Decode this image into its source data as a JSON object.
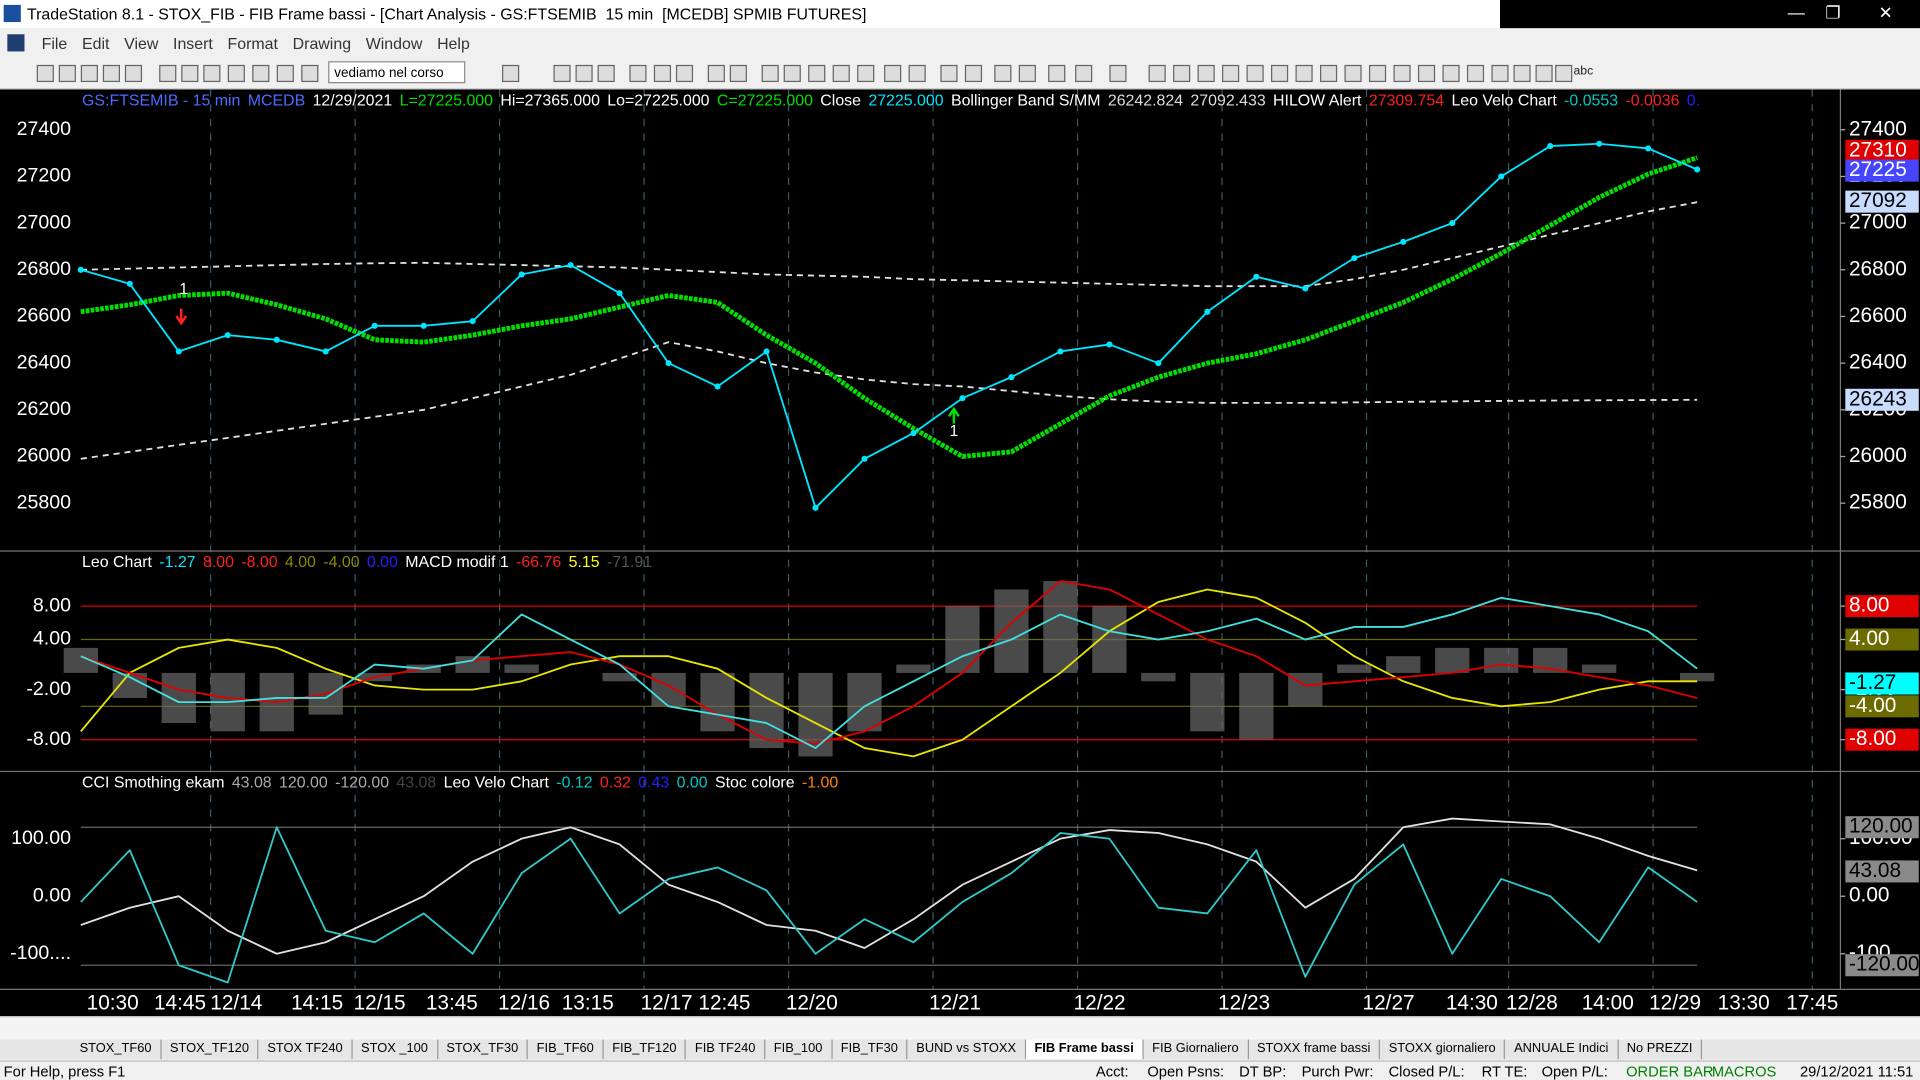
{
  "window": {
    "title": "TradeStation 8.1 - STOX_FIB - FIB Frame bassi - [Chart Analysis - GS:FTSEMIB  15 min  [MCEDB] SPMIB FUTURES]"
  },
  "menu": [
    "File",
    "Edit",
    "View",
    "Insert",
    "Format",
    "Drawing",
    "Window",
    "Help"
  ],
  "toolbar": {
    "workspace_select": "vediamo nel corso",
    "text_tool": "abc"
  },
  "chart": {
    "price_panel": {
      "header": [
        {
          "text": "GS:FTSEMIB - 15 min",
          "color": "#4a6cff"
        },
        {
          "text": "MCEDB",
          "color": "#4a6cff"
        },
        {
          "text": "12/29/2021",
          "color": "#ffffff"
        },
        {
          "text": "L=27225.000",
          "color": "#00e000"
        },
        {
          "text": "Hi=27365.000",
          "color": "#ffffff"
        },
        {
          "text": "Lo=27225.000",
          "color": "#ffffff"
        },
        {
          "text": "C=27225.000",
          "color": "#00e000"
        },
        {
          "text": "Close",
          "color": "#ffffff"
        },
        {
          "text": "27225.000",
          "color": "#00e5ff"
        },
        {
          "text": "Bollinger Band S/MM",
          "color": "#ffffff"
        },
        {
          "text": "26242.824",
          "color": "#dddddd"
        },
        {
          "text": "27092.433",
          "color": "#dddddd"
        },
        {
          "text": "HILOW Alert",
          "color": "#ffffff"
        },
        {
          "text": "27309.754",
          "color": "#ff2020"
        },
        {
          "text": "Leo Velo Chart",
          "color": "#ffffff"
        },
        {
          "text": "-0.0553",
          "color": "#00c8c8"
        },
        {
          "text": "-0.0036",
          "color": "#ff2020"
        },
        {
          "text": "0.",
          "color": "#2020ff"
        }
      ],
      "ylim": [
        25595,
        27573
      ],
      "yticks": [
        27400,
        27200,
        27000,
        26800,
        26600,
        26400,
        26200,
        26000,
        25800
      ],
      "badges": [
        {
          "value": 27310,
          "bg": "#e00000",
          "fg": "#ffffff"
        },
        {
          "value": 27225,
          "bg": "#4646ff",
          "fg": "#ffffff"
        },
        {
          "value": 27092,
          "bg": "#c8dcff",
          "fg": "#000000"
        },
        {
          "value": 26243,
          "bg": "#c8dcff",
          "fg": "#000000"
        }
      ],
      "series": [
        {
          "color": "#e0e0e0",
          "style": "dashed",
          "values": [
            26800,
            26805,
            26810,
            26815,
            26820,
            26825,
            26828,
            26830,
            26825,
            26820,
            26815,
            26810,
            26800,
            26790,
            26780,
            26775,
            26770,
            26760,
            26755,
            26750,
            26745,
            26740,
            26735,
            26730,
            26730,
            26730,
            26760,
            26800,
            26850,
            26900,
            26950,
            27000,
            27050,
            27090
          ]
        },
        {
          "color": "#e0e0e0",
          "style": "dashed",
          "values": [
            25990,
            26020,
            26050,
            26080,
            26110,
            26140,
            26170,
            26200,
            26250,
            26300,
            26350,
            26420,
            26490,
            26450,
            26400,
            26360,
            26330,
            26310,
            26300,
            26280,
            26260,
            26245,
            26235,
            26230,
            26230,
            26230,
            26232,
            26234,
            26236,
            26238,
            26240,
            26241,
            26242,
            26243
          ]
        },
        {
          "color": "#00e000",
          "style": "thick",
          "values": [
            26620,
            26650,
            26690,
            26700,
            26650,
            26590,
            26500,
            26490,
            26520,
            26560,
            26590,
            26640,
            26690,
            26660,
            26520,
            26400,
            26250,
            26120,
            26000,
            26020,
            26140,
            26260,
            26340,
            26400,
            26440,
            26500,
            26580,
            26660,
            26760,
            26870,
            26990,
            27110,
            27210,
            27280
          ]
        },
        {
          "color": "#00e5ff",
          "style": "dotted-line",
          "values": [
            26800,
            26740,
            26450,
            26520,
            26500,
            26450,
            26560,
            26560,
            26580,
            26780,
            26820,
            26700,
            26400,
            26300,
            26450,
            25780,
            25990,
            26100,
            26250,
            26340,
            26450,
            26480,
            26400,
            26620,
            26770,
            26720,
            26850,
            26920,
            27000,
            27200,
            27330,
            27340,
            27320,
            27230
          ]
        }
      ],
      "annotations": [
        "1",
        "1"
      ]
    },
    "macd_panel": {
      "header": [
        {
          "text": "Leo Chart",
          "color": "#ffffff"
        },
        {
          "text": "-1.27",
          "color": "#00e5ff"
        },
        {
          "text": "8.00",
          "color": "#ff2020"
        },
        {
          "text": "-8.00",
          "color": "#ff2020"
        },
        {
          "text": "4.00",
          "color": "#8a8a00"
        },
        {
          "text": "-4.00",
          "color": "#8a8a00"
        },
        {
          "text": "0.00",
          "color": "#2020ff"
        },
        {
          "text": "MACD modif 1",
          "color": "#ffffff"
        },
        {
          "text": "-66.76",
          "color": "#ff2020"
        },
        {
          "text": "5.15",
          "color": "#ffff00"
        },
        {
          "text": "-71.91",
          "color": "#555555"
        }
      ],
      "ylim": [
        -11.8,
        14.6
      ],
      "yticks": [
        {
          "value": 8,
          "label": "8.00"
        },
        {
          "value": 4,
          "label": "4.00"
        },
        {
          "value": -2,
          "label": "-2.00"
        },
        {
          "value": -8,
          "label": "-8.00"
        }
      ],
      "badges": [
        {
          "value": 8,
          "label": "8.00",
          "bg": "#e00000",
          "fg": "#ffffff",
          "line": true
        },
        {
          "value": 4,
          "label": "4.00",
          "bg": "#6b6b00",
          "fg": "#ffffff",
          "line": true
        },
        {
          "value": -1.27,
          "label": "-1.27",
          "bg": "#00ffff",
          "fg": "#000000",
          "line": false
        },
        {
          "value": -4,
          "label": "-4.00",
          "bg": "#6b6b00",
          "fg": "#ffffff",
          "line": true
        },
        {
          "value": -8,
          "label": "-8.00",
          "bg": "#e00000",
          "fg": "#ffffff",
          "line": true
        }
      ],
      "series": [
        {
          "color": "#6a6a6a",
          "style": "histogram",
          "values": [
            3,
            -3,
            -6,
            -7,
            -7,
            -5,
            -1,
            1,
            2,
            1,
            0,
            -1,
            -4,
            -7,
            -9,
            -10,
            -7,
            1,
            8,
            10,
            11,
            8,
            -1,
            -7,
            -8,
            -4,
            1,
            2,
            3,
            3,
            3,
            1,
            0,
            -1
          ]
        },
        {
          "color": "#e6e600",
          "style": "line",
          "values": [
            -7,
            0,
            3,
            4,
            3,
            0.5,
            -1.5,
            -2,
            -2,
            -1,
            1,
            2,
            2,
            0.5,
            -3,
            -6,
            -9,
            -10,
            -8,
            -4,
            0,
            5,
            8.5,
            10,
            9,
            6,
            2,
            -1,
            -3,
            -4,
            -3.5,
            -2,
            -1,
            -1
          ]
        },
        {
          "color": "#e00000",
          "style": "line",
          "values": [
            2,
            0,
            -2,
            -3,
            -3.5,
            -2.5,
            -0.5,
            0.5,
            1.5,
            2,
            2.5,
            1,
            -1.5,
            -5,
            -8,
            -8.5,
            -7,
            -4,
            0,
            6,
            11,
            10,
            7,
            4,
            2,
            -1.5,
            -1,
            -0.5,
            0,
            1,
            0.5,
            -0.5,
            -1.5,
            -3
          ]
        },
        {
          "color": "#40e0e0",
          "style": "line",
          "values": [
            2,
            -0.5,
            -3.5,
            -3.5,
            -3,
            -3,
            1,
            0.5,
            1.5,
            7,
            4,
            1,
            -4,
            -5,
            -6,
            -9,
            -4,
            -1,
            2,
            4,
            7,
            5,
            4,
            5,
            6.5,
            4,
            5.5,
            5.5,
            7,
            9,
            8,
            7,
            5,
            0.5
          ]
        }
      ]
    },
    "cci_panel": {
      "header": [
        {
          "text": "CCI Smothing ekam",
          "color": "#ffffff"
        },
        {
          "text": "43.08",
          "color": "#aaaaaa"
        },
        {
          "text": "120.00",
          "color": "#aaaaaa"
        },
        {
          "text": "-120.00",
          "color": "#aaaaaa"
        },
        {
          "text": "43.08",
          "color": "#444444"
        },
        {
          "text": "Leo Velo Chart",
          "color": "#ffffff"
        },
        {
          "text": "-0.12",
          "color": "#00c8c8"
        },
        {
          "text": "0.32",
          "color": "#ff2020"
        },
        {
          "text": "0.43",
          "color": "#2020ff"
        },
        {
          "text": "0.00",
          "color": "#00c8c8"
        },
        {
          "text": "Stoc colore",
          "color": "#ffffff"
        },
        {
          "text": "-1.00",
          "color": "#ff8000"
        }
      ],
      "ylim": [
        -162,
        217
      ],
      "yticks": [
        {
          "value": 100,
          "label": "100.00"
        },
        {
          "value": 0,
          "label": "0.00"
        },
        {
          "value": -100,
          "label": "-100...."
        }
      ],
      "badges": [
        {
          "value": 120,
          "label": "120.00",
          "bg": "#8a8a8a",
          "fg": "#000000",
          "line": true
        },
        {
          "value": 43.08,
          "label": "43.08",
          "bg": "#8a8a8a",
          "fg": "#000000",
          "line": false
        },
        {
          "value": -120,
          "label": "-120.00",
          "bg": "#8a8a8a",
          "fg": "#000000",
          "line": true
        }
      ],
      "series": [
        {
          "color": "#e0e0e0",
          "style": "line",
          "values": [
            -50,
            -20,
            0,
            -60,
            -100,
            -80,
            -40,
            0,
            60,
            100,
            120,
            90,
            20,
            -10,
            -50,
            -60,
            -90,
            -40,
            20,
            60,
            100,
            115,
            110,
            90,
            60,
            -20,
            30,
            120,
            135,
            130,
            125,
            100,
            70,
            45
          ]
        },
        {
          "color": "#30c8c8",
          "style": "line",
          "values": [
            -10,
            80,
            -120,
            -150,
            120,
            -60,
            -80,
            -30,
            -100,
            40,
            100,
            -30,
            30,
            50,
            10,
            -100,
            -40,
            -80,
            -10,
            40,
            110,
            100,
            -20,
            -30,
            80,
            -140,
            20,
            90,
            -100,
            30,
            0,
            -80,
            50,
            -10
          ]
        }
      ]
    },
    "x_labels": [
      "10:30",
      "14:45",
      "12/14",
      "14:15",
      "12/15",
      "13:45",
      "12/16",
      "13:15",
      "12/17 12:45",
      "12/20",
      "12/21",
      "12/22",
      "12/23",
      "12/27",
      "14:30",
      "12/28",
      "14:00",
      "12/29",
      "13:30",
      "17:45"
    ]
  },
  "tabs": [
    "STOX_TF60",
    "STOX_TF120",
    "STOX TF240",
    "STOX _100",
    "STOX_TF30",
    "FIB_TF60",
    "FIB_TF120",
    "FIB TF240",
    "FIB_100",
    "FIB_TF30",
    "BUND vs STOXX",
    "FIB Frame bassi",
    "FIB Giornaliero",
    "STOXX frame bassi",
    "STOXX giornaliero",
    "ANNUALE Indici",
    "No PREZZI"
  ],
  "active_tab": "FIB Frame bassi",
  "status": {
    "help": "For Help, press F1",
    "fields": [
      "Acct:",
      "Open Psns:",
      "DT BP:",
      "Purch Pwr:",
      "Closed P/L:",
      "RT TE:",
      "Open P/L:",
      "ORDER BAR",
      "MACROS"
    ],
    "clock": "29/12/2021 11:51"
  }
}
